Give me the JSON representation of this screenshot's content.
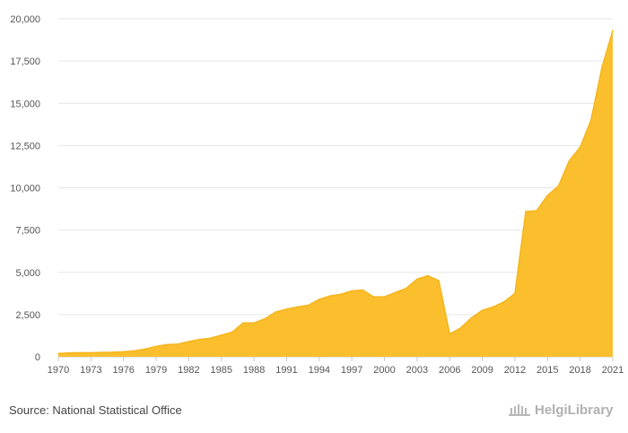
{
  "chart_data": {
    "type": "area",
    "title": "",
    "xlabel": "",
    "ylabel": "",
    "ylim": [
      0,
      20000
    ],
    "xlim": [
      1970,
      2021
    ],
    "grid": true,
    "y_ticks": [
      0,
      2500,
      5000,
      7500,
      10000,
      12500,
      15000,
      17500,
      20000
    ],
    "y_tick_labels": [
      "0",
      "2,500",
      "5,000",
      "7,500",
      "10,000",
      "12,500",
      "15,000",
      "17,500",
      "20,000"
    ],
    "x_ticks": [
      1970,
      1973,
      1976,
      1979,
      1982,
      1985,
      1988,
      1991,
      1994,
      1997,
      2000,
      2003,
      2006,
      2009,
      2012,
      2015,
      2018,
      2021
    ],
    "x_tick_labels": [
      "1970",
      "1973",
      "1976",
      "1979",
      "1982",
      "1985",
      "1988",
      "1991",
      "1994",
      "1997",
      "2000",
      "2003",
      "2006",
      "2009",
      "2012",
      "2015",
      "2018",
      "2021"
    ],
    "fill_color": "#fbbf2e",
    "line_color": "#f5b51b",
    "x": [
      1970,
      1971,
      1972,
      1973,
      1974,
      1975,
      1976,
      1977,
      1978,
      1979,
      1980,
      1981,
      1982,
      1983,
      1984,
      1985,
      1986,
      1987,
      1988,
      1989,
      1990,
      1991,
      1992,
      1993,
      1994,
      1995,
      1996,
      1997,
      1998,
      1999,
      2000,
      2001,
      2002,
      2003,
      2004,
      2005,
      2006,
      2007,
      2008,
      2009,
      2010,
      2011,
      2012,
      2013,
      2014,
      2015,
      2016,
      2017,
      2018,
      2019,
      2020,
      2021
    ],
    "values": [
      190,
      230,
      240,
      240,
      260,
      270,
      300,
      350,
      460,
      620,
      720,
      750,
      900,
      1030,
      1100,
      1280,
      1460,
      2000,
      2000,
      2250,
      2650,
      2820,
      2950,
      3050,
      3400,
      3600,
      3700,
      3900,
      3950,
      3550,
      3550,
      3800,
      4050,
      4600,
      4800,
      4500,
      1350,
      1700,
      2300,
      2750,
      2950,
      3250,
      3750,
      8600,
      8650,
      9550,
      10100,
      11600,
      12400,
      14000,
      17100,
      19300
    ]
  },
  "footer": {
    "source": "Source: National Statistical Office",
    "logo_text": "HelgiLibrary"
  }
}
